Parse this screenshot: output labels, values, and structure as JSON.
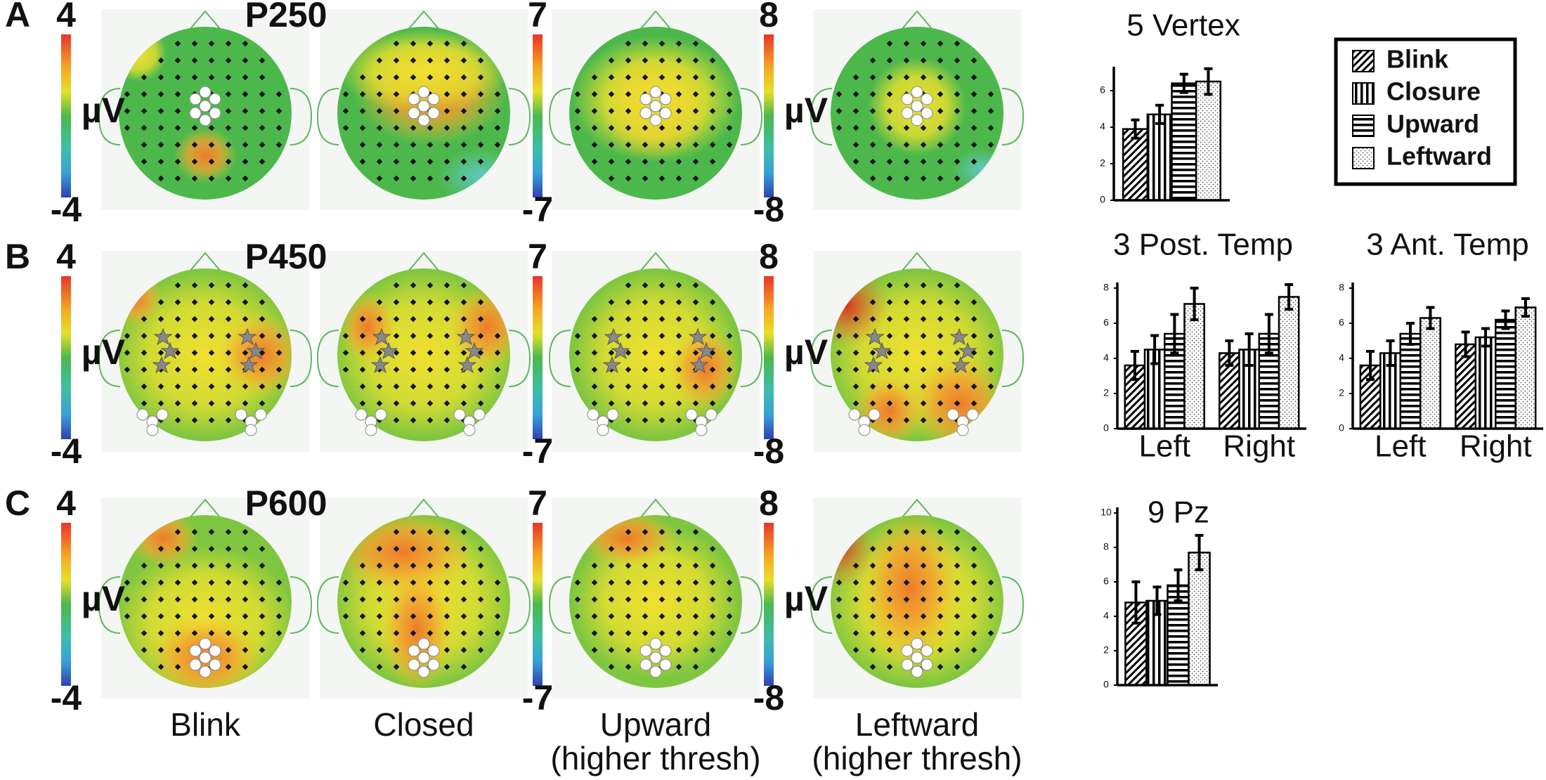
{
  "figure": {
    "rows": [
      {
        "label": "A",
        "component": "P250"
      },
      {
        "label": "B",
        "component": "P450"
      },
      {
        "label": "C",
        "component": "P600"
      }
    ],
    "colorbars": [
      {
        "clim": [
          -4,
          4
        ],
        "unit": "µV"
      },
      {
        "clim": [
          -7,
          7
        ]
      },
      {
        "clim": [
          -8,
          8
        ],
        "unit": "µV"
      }
    ],
    "conditions": [
      {
        "name": "Blink"
      },
      {
        "name": "Closed"
      },
      {
        "name": "Upward",
        "note": "(higher thresh)"
      },
      {
        "name": "Leftward",
        "note": "(higher thresh)"
      }
    ]
  },
  "chart_data": [
    {
      "type": "bar",
      "title": "5 Vertex",
      "ylim": [
        0,
        7
      ],
      "yticks": [
        0,
        2,
        4,
        6
      ],
      "series": [
        {
          "name": "Blink",
          "pattern": "diagonal",
          "values": [
            3.9
          ],
          "errors": [
            0.5
          ]
        },
        {
          "name": "Closure",
          "pattern": "vertical",
          "values": [
            4.7
          ],
          "errors": [
            0.5
          ]
        },
        {
          "name": "Upward",
          "pattern": "horizontal",
          "values": [
            6.4
          ],
          "errors": [
            0.5
          ]
        },
        {
          "name": "Leftward",
          "pattern": "dots",
          "values": [
            6.5
          ],
          "errors": [
            0.7
          ]
        }
      ]
    },
    {
      "type": "bar",
      "title": "3 Post. Temp",
      "categories": [
        "Left",
        "Right"
      ],
      "ylim": [
        0,
        8
      ],
      "yticks": [
        0,
        2,
        4,
        6,
        8
      ],
      "series": [
        {
          "pattern": "diagonal",
          "values": [
            3.6,
            4.3
          ],
          "errors": [
            0.8,
            0.7
          ]
        },
        {
          "pattern": "vertical",
          "values": [
            4.5,
            4.5
          ],
          "errors": [
            0.8,
            0.9
          ]
        },
        {
          "pattern": "horizontal",
          "values": [
            5.4,
            5.4
          ],
          "errors": [
            1.1,
            1.1
          ]
        },
        {
          "pattern": "dots",
          "values": [
            7.1,
            7.5
          ],
          "errors": [
            0.9,
            0.7
          ]
        }
      ]
    },
    {
      "type": "bar",
      "title": "3 Ant. Temp",
      "categories": [
        "Left",
        "Right"
      ],
      "ylim": [
        0,
        8
      ],
      "yticks": [
        0,
        2,
        4,
        6,
        8
      ],
      "series": [
        {
          "pattern": "diagonal",
          "values": [
            3.6,
            4.8
          ],
          "errors": [
            0.8,
            0.7
          ]
        },
        {
          "pattern": "vertical",
          "values": [
            4.3,
            5.2
          ],
          "errors": [
            0.7,
            0.5
          ]
        },
        {
          "pattern": "horizontal",
          "values": [
            5.4,
            6.2
          ],
          "errors": [
            0.6,
            0.5
          ]
        },
        {
          "pattern": "dots",
          "values": [
            6.3,
            6.9
          ],
          "errors": [
            0.6,
            0.5
          ]
        }
      ]
    },
    {
      "type": "bar",
      "title": "9 Pz",
      "ylim": [
        0,
        10
      ],
      "yticks": [
        0,
        2,
        4,
        6,
        8,
        10
      ],
      "series": [
        {
          "pattern": "diagonal",
          "values": [
            4.8
          ],
          "errors": [
            1.2
          ]
        },
        {
          "pattern": "vertical",
          "values": [
            4.9
          ],
          "errors": [
            0.8
          ]
        },
        {
          "pattern": "horizontal",
          "values": [
            5.8
          ],
          "errors": [
            0.9
          ]
        },
        {
          "pattern": "dots",
          "values": [
            7.7
          ],
          "errors": [
            1.0
          ]
        }
      ]
    }
  ]
}
